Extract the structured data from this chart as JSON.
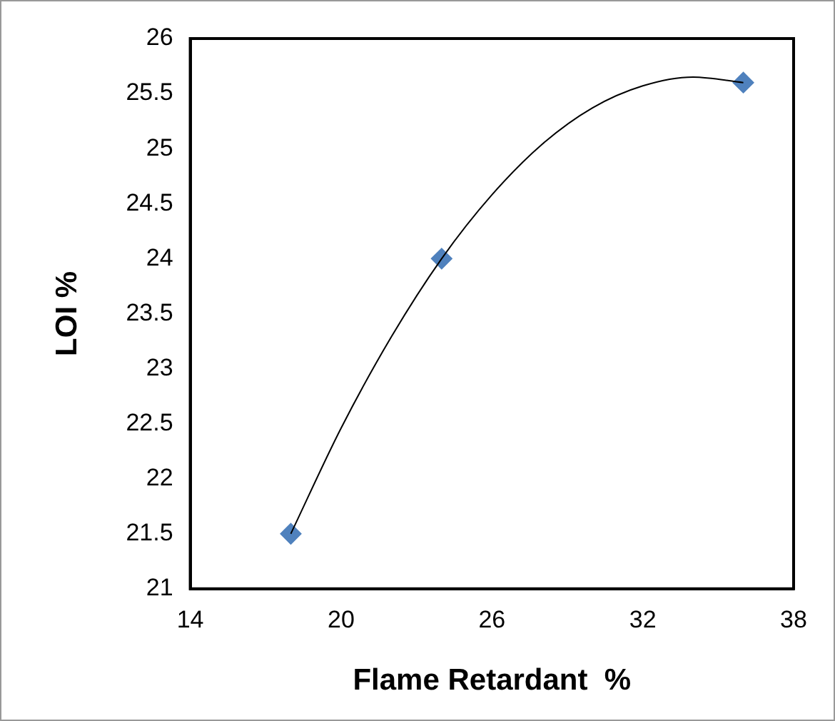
{
  "chart_data": {
    "type": "scatter",
    "xlabel": "Flame Retardant  %",
    "ylabel": "LOI %",
    "series": [
      {
        "type": "line",
        "x": [
          18,
          20,
          22,
          24,
          26,
          28,
          30,
          32,
          34,
          36
        ],
        "values": [
          21.5,
          22.46,
          23.29,
          24,
          24.58,
          25.04,
          25.37,
          25.57,
          25.65,
          25.6
        ],
        "color": "#000000",
        "marker": "none"
      },
      {
        "type": "scatter",
        "x": [
          18,
          24,
          36
        ],
        "values": [
          21.5,
          24,
          25.6
        ],
        "color": "#4f81bd",
        "marker": "diamond"
      }
    ],
    "xlim": [
      14,
      38
    ],
    "xticks": [
      14,
      20,
      26,
      32,
      38
    ],
    "ylim": [
      21,
      26
    ],
    "yticks": [
      21,
      21.5,
      22,
      22.5,
      23,
      23.5,
      24,
      24.5,
      25,
      25.5,
      26
    ],
    "grid": false,
    "legend": false
  }
}
